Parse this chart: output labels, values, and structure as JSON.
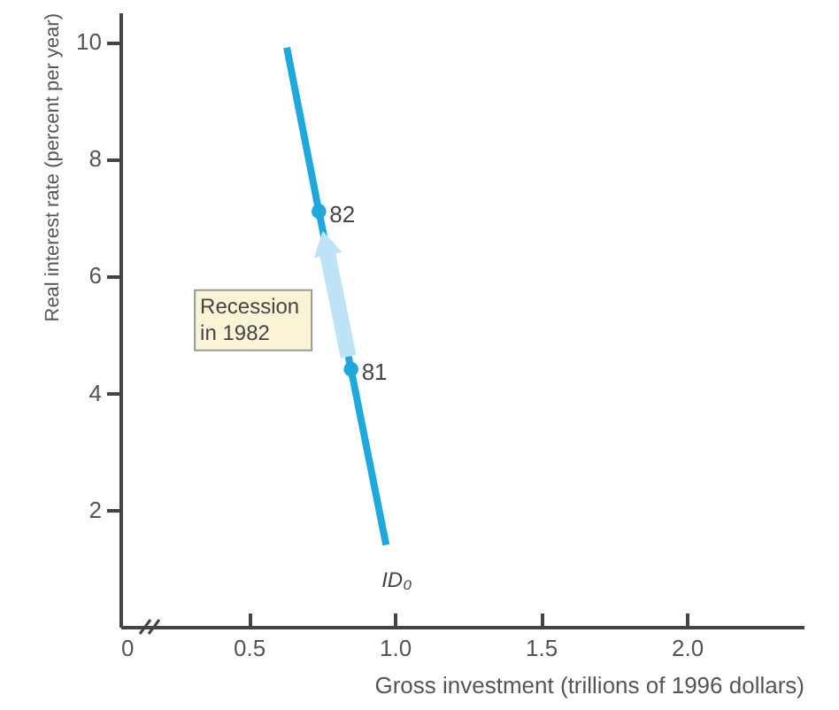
{
  "chart_data": {
    "type": "line",
    "xlabel": "Gross investment (trillions of 1996 dollars)",
    "ylabel": "Real interest rate (percent per year)",
    "series": [
      {
        "name": "ID₀",
        "color": "#1fa8dc",
        "x": [
          0.63,
          0.74,
          0.85,
          0.97
        ],
        "values": [
          9.9,
          7.1,
          4.4,
          1.4
        ],
        "marker": "none"
      },
      {
        "type": "scatter",
        "color": "#1fa8dc",
        "x": [
          0.74,
          0.85
        ],
        "values": [
          7.1,
          4.4
        ],
        "marker": "circle"
      }
    ],
    "annotations": [
      "Recession in 1982",
      {
        "text": "82",
        "x": 0.74,
        "y": 7.1
      },
      {
        "text": "81",
        "x": 0.85,
        "y": 4.4
      }
    ],
    "xlim": [
      0.06,
      2.4
    ],
    "xticks": [
      {
        "value": 0.06,
        "label": "0"
      },
      0.5,
      {
        "value": 1,
        "label": "1.0"
      },
      1.5,
      {
        "value": 2,
        "label": "2.0"
      }
    ],
    "ylim": [
      0,
      10.5
    ],
    "yticks": [
      2,
      4,
      6,
      8,
      10
    ]
  }
}
